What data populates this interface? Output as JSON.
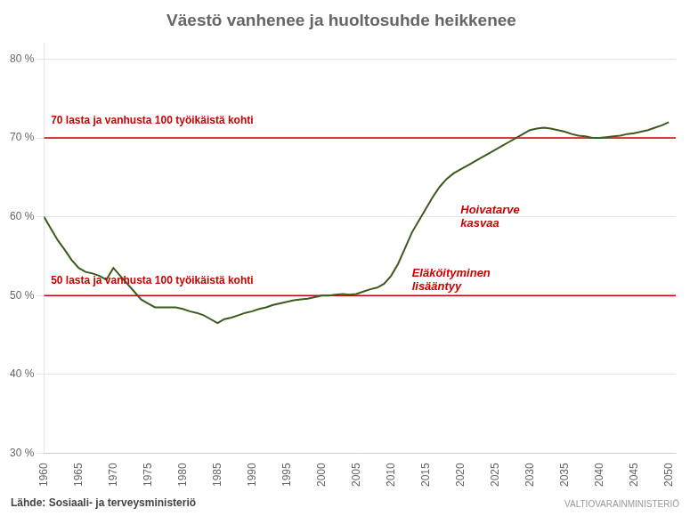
{
  "chart_data": {
    "type": "line",
    "title": "Väestö vanhenee ja huoltosuhde heikkenee",
    "x": [
      1960,
      1961,
      1962,
      1963,
      1964,
      1965,
      1966,
      1967,
      1968,
      1969,
      1970,
      1971,
      1972,
      1973,
      1974,
      1975,
      1976,
      1977,
      1978,
      1979,
      1980,
      1981,
      1982,
      1983,
      1984,
      1985,
      1986,
      1987,
      1988,
      1989,
      1990,
      1991,
      1992,
      1993,
      1994,
      1995,
      1996,
      1997,
      1998,
      1999,
      2000,
      2001,
      2002,
      2003,
      2004,
      2005,
      2006,
      2007,
      2008,
      2009,
      2010,
      2011,
      2012,
      2013,
      2014,
      2015,
      2016,
      2017,
      2018,
      2019,
      2020,
      2021,
      2022,
      2023,
      2024,
      2025,
      2026,
      2027,
      2028,
      2029,
      2030,
      2031,
      2032,
      2033,
      2034,
      2035,
      2036,
      2037,
      2038,
      2039,
      2040,
      2041,
      2042,
      2043,
      2044,
      2045,
      2046,
      2047,
      2048,
      2049,
      2050
    ],
    "values": [
      60.0,
      58.5,
      57.0,
      55.8,
      54.5,
      53.5,
      53.0,
      52.8,
      52.5,
      52.0,
      53.5,
      52.5,
      51.5,
      50.5,
      49.5,
      49.0,
      48.5,
      48.5,
      48.5,
      48.5,
      48.3,
      48.0,
      47.8,
      47.5,
      47.0,
      46.5,
      47.0,
      47.2,
      47.5,
      47.8,
      48.0,
      48.3,
      48.5,
      48.8,
      49.0,
      49.2,
      49.4,
      49.5,
      49.6,
      49.8,
      50.0,
      50.0,
      50.1,
      50.2,
      50.1,
      50.2,
      50.5,
      50.8,
      51.0,
      51.5,
      52.5,
      54.0,
      56.0,
      58.0,
      59.5,
      61.0,
      62.5,
      63.8,
      64.8,
      65.5,
      66.0,
      66.5,
      67.0,
      67.5,
      68.0,
      68.5,
      69.0,
      69.5,
      70.0,
      70.5,
      71.0,
      71.2,
      71.3,
      71.2,
      71.0,
      70.8,
      70.5,
      70.3,
      70.2,
      70.0,
      70.0,
      70.1,
      70.2,
      70.3,
      70.5,
      70.6,
      70.8,
      71.0,
      71.3,
      71.6,
      72.0
    ],
    "color": "#3B5A1E",
    "xlim": [
      1960,
      2051
    ],
    "xticks": [
      1960,
      1965,
      1970,
      1975,
      1980,
      1985,
      1990,
      1995,
      2000,
      2005,
      2010,
      2015,
      2020,
      2025,
      2030,
      2035,
      2040,
      2045,
      2050
    ],
    "ylim": [
      30,
      82
    ],
    "yticks": [
      {
        "value": 30,
        "label": "30 %"
      },
      {
        "value": 40,
        "label": "40 %"
      },
      {
        "value": 50,
        "label": "50 %"
      },
      {
        "value": 60,
        "label": "60 %"
      },
      {
        "value": 70,
        "label": "70 %"
      },
      {
        "value": 80,
        "label": "80 %"
      }
    ],
    "grid": "y",
    "reference_lines": [
      {
        "value": 70,
        "color": "#CC0000"
      },
      {
        "value": 50,
        "color": "#CC0000"
      }
    ],
    "annotations": [
      {
        "text": "70 lasta ja vanhusta 100 työikäistä kohti",
        "x": 1961,
        "y": 71.5,
        "color": "#CC0000"
      },
      {
        "text": "50 lasta ja vanhusta 100 työikäistä kohti",
        "x": 1961,
        "y": 51.2,
        "color": "#CC0000"
      },
      {
        "text": "Hoivatarve\nkasvaa",
        "x": 2020,
        "y": 61.5,
        "color": "#CC0000"
      },
      {
        "text": "Eläköityminen\nlisääntyy",
        "x": 2013,
        "y": 53.5,
        "color": "#CC0000"
      }
    ],
    "source": "Lähde: Sosiaali- ja terveysministeriö",
    "watermark": "VALTIOVARAINMINISTERIÖ"
  }
}
